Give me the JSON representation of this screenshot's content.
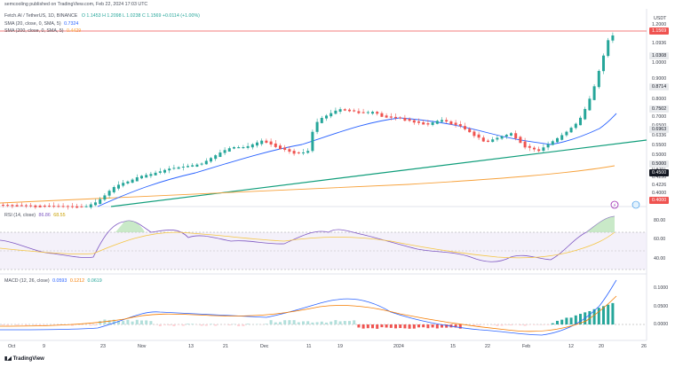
{
  "header": {
    "published": "semcooling published on TradingView.com, Feb 22, 2024 17:03 UTC",
    "symbol": "Fetch.AI / TetherUS, 1D, BINANCE",
    "ohlc": "O 1.1453  H 1.2098  L 1.0238  C 1.1569  +0.0114 (+1.00%)",
    "sma_label": "SMA (20, close, 0, SMA, 5)",
    "sma_value": "0.7324",
    "sma2_label": "SMA (200, close, 0, SMA, 5)",
    "sma2_value": "0.4429",
    "currency": "USDT"
  },
  "colors": {
    "up": "#26a69a",
    "down": "#ef5350",
    "sma20": "#2962ff",
    "sma200": "#f7a13a",
    "trend": "#0f9d7a",
    "rsi": "#7e57c2",
    "rsi_ma": "#f5c542"
  },
  "price_axis": {
    "labels": [
      "1.2000",
      "1.0936",
      "1.0000",
      "0.9000",
      "0.8000",
      "0.7500",
      "0.7000",
      "0.6500",
      "0.6336",
      "0.5500",
      "0.5000",
      "0.4381",
      "0.4250",
      "0.4226",
      "0.4000",
      "0.3500"
    ],
    "tags": [
      {
        "text": "1.1569",
        "kind": "red"
      },
      {
        "text": "1.0308",
        "kind": "gray"
      },
      {
        "text": "0.8714",
        "kind": "gray"
      },
      {
        "text": "0.7502",
        "kind": "gray"
      },
      {
        "text": "0.6963",
        "kind": "gray"
      },
      {
        "text": "0.4500",
        "kind": "black"
      },
      {
        "text": "0.5000",
        "kind": "gray"
      },
      {
        "text": "0.4000",
        "kind": "red"
      }
    ]
  },
  "rsi": {
    "label": "RSI (14, close)",
    "value": "86.86",
    "ma_value": "68.55",
    "axis": [
      "80.00",
      "60.00",
      "40.00"
    ]
  },
  "macd": {
    "label": "MACD (12, 26, close)",
    "macd_value": "0.0593",
    "signal_value": "0.1212",
    "hist_value": "0.0619",
    "axis": [
      "0.1000",
      "0.0500",
      "0.0000"
    ]
  },
  "time_axis": [
    "Oct",
    "9",
    "23",
    "Nov",
    "13",
    "21",
    "Dec",
    "11",
    "19",
    "2024",
    "15",
    "22",
    "Feb",
    "12",
    "20",
    "26"
  ],
  "footer": {
    "brand": "TradingView"
  }
}
